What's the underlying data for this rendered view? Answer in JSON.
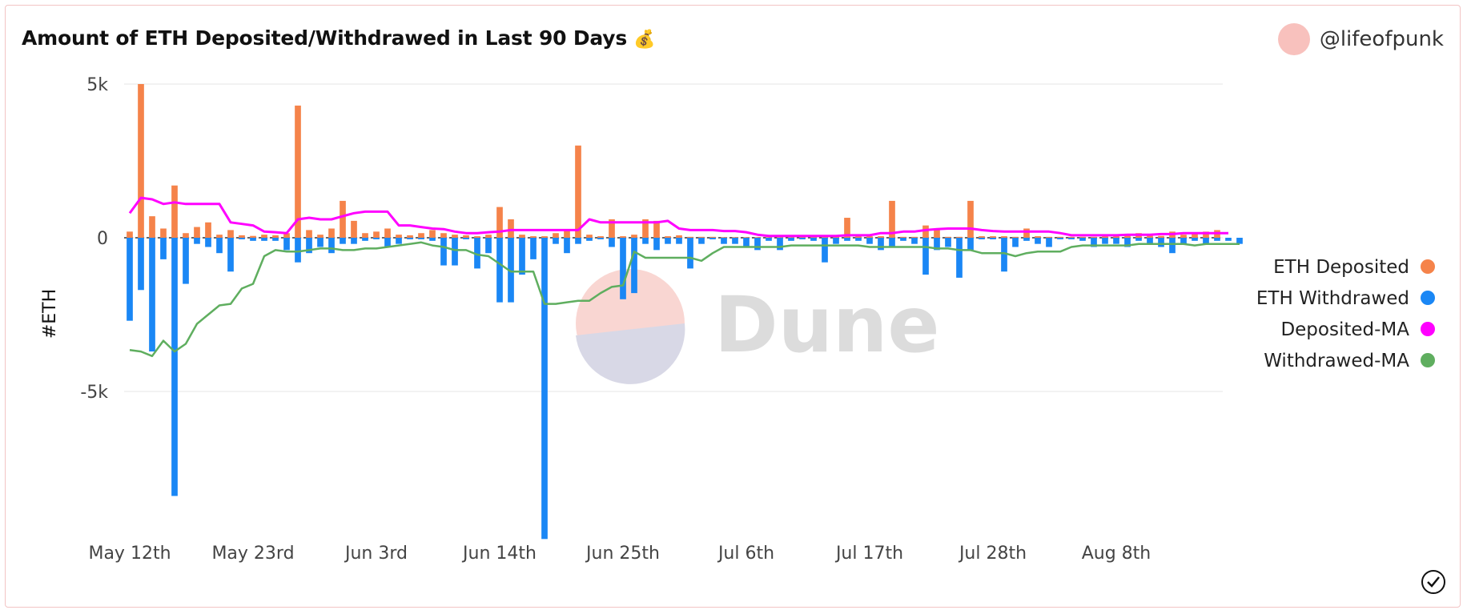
{
  "header": {
    "title": "Amount of ETH Deposited/Withdrawed in Last 90 Days",
    "title_icon": "money-bag-icon",
    "author": "@lifeofpunk"
  },
  "watermark": "Dune",
  "colors": {
    "deposited": "#f5834a",
    "withdrawed": "#1a87f5",
    "deposited_ma": "#ff00ff",
    "withdrawed_ma": "#5fae5f"
  },
  "chart_data": {
    "type": "bar",
    "title": "Amount of ETH Deposited/Withdrawed in Last 90 Days",
    "ylabel": "#ETH",
    "xlabel": "",
    "ylim": [
      -10000,
      5200
    ],
    "yticks": [
      {
        "value": 5000,
        "label": "5k"
      },
      {
        "value": 0,
        "label": "0"
      },
      {
        "value": -5000,
        "label": "-5k"
      }
    ],
    "xticks": [
      {
        "index": 0,
        "label": "May 12th"
      },
      {
        "index": 11,
        "label": "May 23rd"
      },
      {
        "index": 22,
        "label": "Jun 3rd"
      },
      {
        "index": 33,
        "label": "Jun 14th"
      },
      {
        "index": 44,
        "label": "Jun 25th"
      },
      {
        "index": 55,
        "label": "Jul 6th"
      },
      {
        "index": 66,
        "label": "Jul 17th"
      },
      {
        "index": 77,
        "label": "Jul 28th"
      },
      {
        "index": 88,
        "label": "Aug 8th"
      }
    ],
    "legend_position": "right",
    "grid": true,
    "series": [
      {
        "name": "ETH Deposited",
        "kind": "bar",
        "values": [
          200,
          5000,
          700,
          300,
          1700,
          150,
          350,
          500,
          100,
          250,
          80,
          60,
          100,
          80,
          150,
          4300,
          250,
          100,
          300,
          1200,
          550,
          150,
          200,
          300,
          100,
          80,
          150,
          250,
          150,
          100,
          80,
          50,
          100,
          1000,
          600,
          100,
          50,
          50,
          150,
          250,
          3000,
          100,
          50,
          600,
          50,
          100,
          600,
          550,
          50,
          80,
          30,
          30,
          30,
          20,
          20,
          20,
          20,
          20,
          20,
          20,
          30,
          30,
          40,
          50,
          650,
          50,
          50,
          50,
          1200,
          30,
          30,
          400,
          250,
          30,
          30,
          1200,
          50,
          50,
          50,
          30,
          300,
          50,
          30,
          30,
          30,
          30,
          30,
          50,
          80,
          100,
          150,
          80,
          60,
          200,
          100,
          150,
          200,
          250
        ]
      },
      {
        "name": "ETH Withdrawed",
        "kind": "bar",
        "values": [
          -2700,
          -1700,
          -3700,
          -700,
          -8400,
          -1500,
          -200,
          -300,
          -500,
          -1100,
          -50,
          -100,
          -100,
          -100,
          -400,
          -800,
          -500,
          -300,
          -500,
          -200,
          -200,
          -100,
          -50,
          -300,
          -200,
          -50,
          -50,
          -100,
          -900,
          -900,
          -50,
          -1000,
          -500,
          -2100,
          -2100,
          -1200,
          -700,
          -9800,
          -200,
          -500,
          -200,
          -100,
          -50,
          -300,
          -2000,
          -1800,
          -200,
          -400,
          -200,
          -200,
          -1000,
          -200,
          -50,
          -200,
          -200,
          -300,
          -400,
          -100,
          -400,
          -100,
          -50,
          -100,
          -800,
          -200,
          -100,
          -100,
          -200,
          -400,
          -300,
          -100,
          -200,
          -1200,
          -400,
          -300,
          -1300,
          -400,
          -50,
          -50,
          -1100,
          -300,
          -100,
          -200,
          -300,
          -50,
          -50,
          -100,
          -300,
          -200,
          -200,
          -300,
          -100,
          -200,
          -300,
          -500,
          -200,
          -100,
          -200,
          -100,
          -100,
          -200
        ]
      },
      {
        "name": "Deposited-MA",
        "kind": "line",
        "values": [
          800,
          1300,
          1250,
          1100,
          1150,
          1100,
          1100,
          1100,
          1100,
          500,
          450,
          400,
          200,
          180,
          150,
          600,
          650,
          600,
          600,
          700,
          800,
          850,
          850,
          850,
          400,
          400,
          350,
          300,
          280,
          200,
          150,
          150,
          180,
          200,
          250,
          250,
          250,
          250,
          250,
          250,
          250,
          600,
          500,
          500,
          500,
          500,
          500,
          500,
          550,
          300,
          250,
          250,
          250,
          220,
          220,
          180,
          100,
          60,
          60,
          60,
          60,
          60,
          60,
          60,
          80,
          80,
          80,
          150,
          150,
          200,
          200,
          250,
          280,
          300,
          300,
          300,
          250,
          220,
          200,
          200,
          200,
          200,
          200,
          150,
          80,
          80,
          80,
          80,
          80,
          100,
          100,
          100,
          120,
          120,
          150,
          150,
          150,
          150,
          150
        ]
      },
      {
        "name": "Withdrawed-MA",
        "kind": "line",
        "values": [
          -3650,
          -3700,
          -3850,
          -3350,
          -3700,
          -3450,
          -2800,
          -2500,
          -2200,
          -2150,
          -1650,
          -1500,
          -600,
          -400,
          -450,
          -450,
          -400,
          -350,
          -350,
          -400,
          -400,
          -350,
          -350,
          -300,
          -250,
          -200,
          -150,
          -250,
          -300,
          -400,
          -400,
          -550,
          -600,
          -850,
          -1100,
          -1100,
          -1100,
          -2150,
          -2150,
          -2100,
          -2050,
          -2050,
          -1800,
          -1600,
          -1550,
          -450,
          -650,
          -650,
          -650,
          -650,
          -650,
          -750,
          -500,
          -300,
          -300,
          -300,
          -300,
          -300,
          -300,
          -250,
          -250,
          -250,
          -250,
          -250,
          -250,
          -250,
          -300,
          -300,
          -300,
          -300,
          -300,
          -300,
          -350,
          -350,
          -400,
          -400,
          -500,
          -500,
          -500,
          -600,
          -500,
          -450,
          -450,
          -450,
          -300,
          -250,
          -250,
          -250,
          -250,
          -250,
          -200,
          -200,
          -200,
          -200,
          -200,
          -250,
          -200,
          -200,
          -200,
          -200
        ]
      }
    ]
  }
}
